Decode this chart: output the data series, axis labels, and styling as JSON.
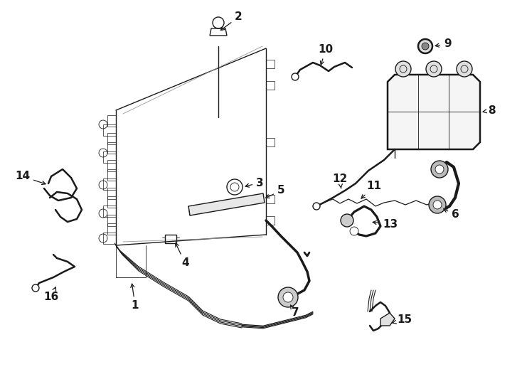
{
  "background_color": "#ffffff",
  "line_color": "#1a1a1a",
  "fig_width": 7.34,
  "fig_height": 5.4,
  "dpi": 100,
  "label_fontsize": 10,
  "label_fontweight": "bold",
  "lw_thick": 2.5,
  "lw_med": 1.8,
  "lw_thin": 1.0,
  "lw_hair": 0.6
}
